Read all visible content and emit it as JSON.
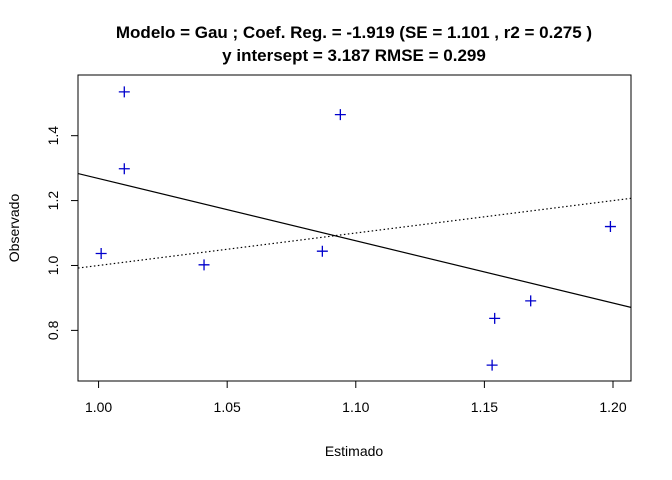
{
  "chart_data": {
    "type": "scatter",
    "title_line1": "Modelo =  Gau ; Coef. Reg. =  -1.919  (SE =  1.101 , r2 =  0.275 )",
    "title_line2": "y intersept =  3.187 RMSE =  0.299",
    "xlabel": "Estimado",
    "ylabel": "Observado",
    "xlim": [
      0.992,
      1.207
    ],
    "ylim": [
      0.644,
      1.587
    ],
    "x_ticks": [
      1.0,
      1.05,
      1.1,
      1.15,
      1.2
    ],
    "x_tick_labels": [
      "1.00",
      "1.05",
      "1.10",
      "1.15",
      "1.20"
    ],
    "y_ticks": [
      0.8,
      1.0,
      1.2,
      1.4
    ],
    "y_tick_labels": [
      "0.8",
      "1.0",
      "1.2",
      "1.4"
    ],
    "grid": false,
    "point_color": "#0000CC",
    "marker": "plus",
    "points": [
      {
        "x": 1.001,
        "y": 1.037
      },
      {
        "x": 1.01,
        "y": 1.535
      },
      {
        "x": 1.01,
        "y": 1.298
      },
      {
        "x": 1.041,
        "y": 1.002
      },
      {
        "x": 1.087,
        "y": 1.044
      },
      {
        "x": 1.094,
        "y": 1.465
      },
      {
        "x": 1.153,
        "y": 0.693
      },
      {
        "x": 1.154,
        "y": 0.837
      },
      {
        "x": 1.168,
        "y": 0.891
      },
      {
        "x": 1.199,
        "y": 1.12
      }
    ],
    "lines": [
      {
        "style": "solid",
        "intercept": 3.187,
        "slope": -1.919
      },
      {
        "style": "dotted",
        "intercept": 0.0,
        "slope": 1.0
      }
    ]
  }
}
